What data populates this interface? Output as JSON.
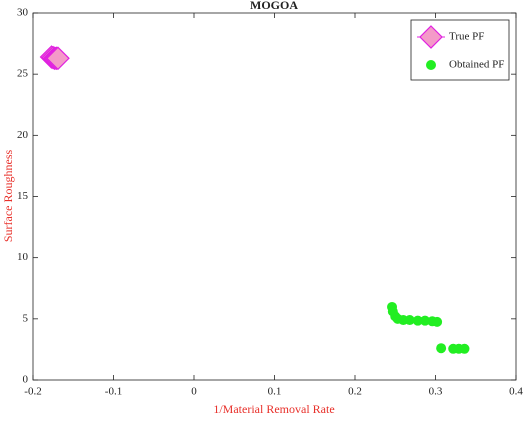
{
  "chart_data": {
    "type": "scatter",
    "title": "MOGOA",
    "x_label": "1/Material Removal Rate",
    "y_label": "Surface Roughness",
    "xlim": [
      -0.2,
      0.4
    ],
    "xticks": [
      -0.2,
      -0.1,
      0,
      0.1,
      0.2,
      0.3,
      0.4
    ],
    "ylim": [
      0,
      30
    ],
    "yticks": [
      0,
      5,
      10,
      15,
      20,
      25,
      30
    ],
    "legend": "upper right",
    "series": [
      {
        "name": "True PF",
        "color": "#e020e0",
        "fill": "#f49ac8",
        "marker": "diamond",
        "x": [
          -0.177,
          -0.175,
          -0.173,
          -0.171,
          -0.169
        ],
        "values": [
          26.4,
          26.35,
          26.3,
          26.3,
          26.3
        ]
      },
      {
        "name": "Obtained PF",
        "color": "#22ee22",
        "fill": "#22ee22",
        "marker": "circle",
        "x": [
          0.246,
          0.247,
          0.25,
          0.253,
          0.26,
          0.268,
          0.278,
          0.287,
          0.296,
          0.302,
          0.307,
          0.322,
          0.329,
          0.336
        ],
        "values": [
          5.97,
          5.6,
          5.2,
          5.0,
          4.9,
          4.9,
          4.85,
          4.85,
          4.8,
          4.75,
          2.6,
          2.55,
          2.55,
          2.55
        ]
      }
    ]
  }
}
